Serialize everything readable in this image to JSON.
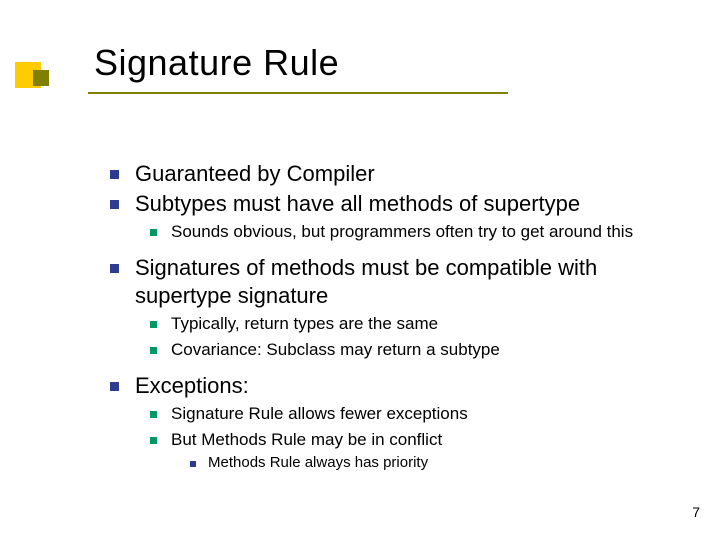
{
  "title": "Signature Rule",
  "page_number": "7",
  "colors": {
    "background": "#ffffff",
    "title_text": "#000000",
    "body_text": "#000000",
    "accent_yellow": "#ffcc00",
    "accent_olive": "#808000",
    "bullet_l1": "#2e3b8f",
    "bullet_l2": "#009966",
    "bullet_l3": "#2e3b8f"
  },
  "typography": {
    "font_family": "Verdana",
    "title_fontsize": 36,
    "l1_fontsize": 22,
    "l2_fontsize": 17,
    "l3_fontsize": 15
  },
  "bullets": {
    "l1": [
      "Guaranteed by Compiler",
      "Subtypes must have all methods of supertype",
      "Signatures of methods must be compatible with supertype signature",
      "Exceptions:"
    ],
    "l2_group1": [
      "Sounds obvious, but programmers often try to get around this"
    ],
    "l2_group2": [
      "Typically, return types are the same",
      "Covariance:  Subclass may return a subtype"
    ],
    "l2_group3": [
      "Signature Rule allows fewer exceptions",
      "But Methods Rule may be in conflict"
    ],
    "l3_group1": [
      "Methods Rule always has priority"
    ]
  }
}
